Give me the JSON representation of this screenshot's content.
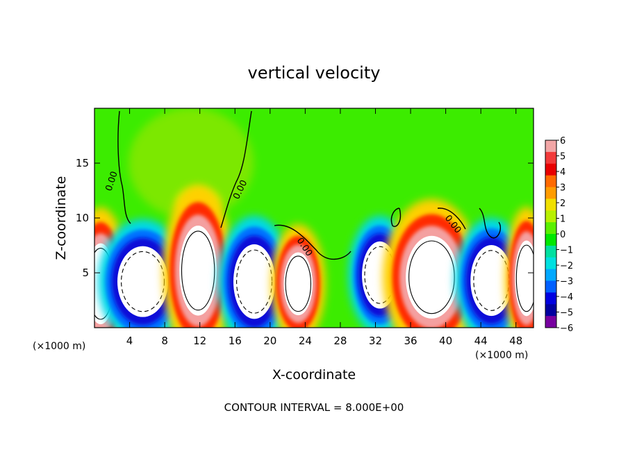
{
  "chart_data": {
    "type": "heatmap",
    "title": "vertical velocity",
    "xlabel": "X-coordinate",
    "ylabel": "Z-coordinate",
    "x_unit_label": "(×1000 m)",
    "z_unit_label": "(×1000 m)",
    "footer": "CONTOUR INTERVAL = 8.000E+00",
    "xlim": [
      0,
      50
    ],
    "ylim": [
      0,
      20
    ],
    "x_ticks": [
      4,
      8,
      12,
      16,
      20,
      24,
      28,
      32,
      36,
      40,
      44,
      48
    ],
    "y_ticks": [
      5,
      10,
      15
    ],
    "contour_labels": [
      "0.00",
      "0.00",
      "0.00",
      "0.00"
    ],
    "colorbar": {
      "ticks": [
        "6",
        "5",
        "4",
        "3",
        "2",
        "1",
        "0",
        "−1",
        "−2",
        "−3",
        "−4",
        "−5",
        "−6"
      ],
      "colors": [
        "#f2a6a6",
        "#f23a3a",
        "#e80000",
        "#ff6a00",
        "#ff9c00",
        "#f0e000",
        "#b8f000",
        "#5af000",
        "#00e800",
        "#00e0a0",
        "#00e0e0",
        "#00a8ff",
        "#0060ff",
        "#0000e0",
        "#0000a0",
        "#7800a0"
      ]
    },
    "cells": [
      {
        "x": 0.7,
        "z": 4.0,
        "sign": "up",
        "wx": 2.0,
        "wz": 4.5
      },
      {
        "x": 5.5,
        "z": 4.2,
        "sign": "down",
        "wx": 3.4,
        "wz": 3.8
      },
      {
        "x": 11.8,
        "z": 5.2,
        "sign": "up",
        "wx": 2.6,
        "wz": 5.0
      },
      {
        "x": 18.2,
        "z": 4.2,
        "sign": "down",
        "wx": 2.8,
        "wz": 4.0
      },
      {
        "x": 23.2,
        "z": 4.0,
        "sign": "up",
        "wx": 2.0,
        "wz": 3.5
      },
      {
        "x": 32.5,
        "z": 4.8,
        "sign": "down",
        "wx": 2.4,
        "wz": 3.6
      },
      {
        "x": 38.4,
        "z": 4.6,
        "sign": "up",
        "wx": 3.6,
        "wz": 4.6
      },
      {
        "x": 45.2,
        "z": 4.3,
        "sign": "down",
        "wx": 2.8,
        "wz": 3.8
      },
      {
        "x": 49.2,
        "z": 4.5,
        "sign": "up",
        "wx": 1.6,
        "wz": 4.2
      }
    ]
  }
}
